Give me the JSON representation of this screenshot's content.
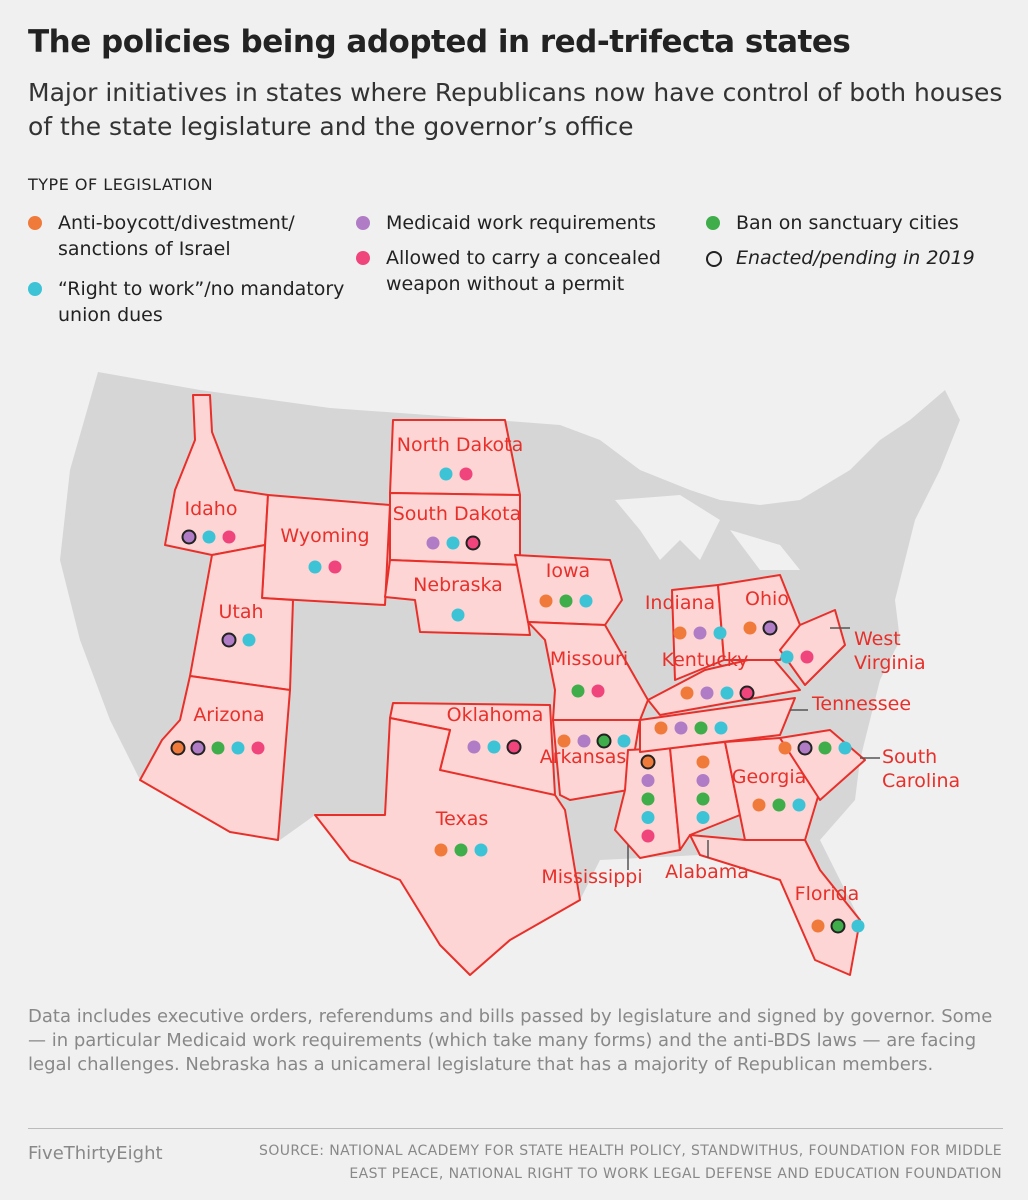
{
  "header": {
    "title": "The policies being adopted in red-trifecta states",
    "subtitle": "Major initiatives in states where Republicans now have control of both houses of the state legislature and the governor’s office"
  },
  "legend": {
    "title": "TYPE OF LEGISLATION",
    "items": [
      {
        "label": "Anti-boycott/divestment/ sanctions of Israel",
        "color": "#f07a3a"
      },
      {
        "label": "“Right to work”/no mandatory union dues",
        "color": "#3cc4d6"
      },
      {
        "label": "Medicaid work requirements",
        "color": "#b07cc6"
      },
      {
        "label": "Allowed to carry a concealed weapon without a permit",
        "color": "#f0447c"
      },
      {
        "label": "Ban on sanctuary cities",
        "color": "#3fad4a"
      }
    ],
    "enacted": "Enacted/pending in 2019"
  },
  "states": [
    {
      "name": "Idaho",
      "policies": [
        {
          "type": 2,
          "enacted": true
        },
        {
          "type": 1,
          "enacted": false
        },
        {
          "type": 3,
          "enacted": false
        }
      ]
    },
    {
      "name": "Wyoming",
      "policies": [
        {
          "type": 1,
          "enacted": false
        },
        {
          "type": 3,
          "enacted": false
        }
      ]
    },
    {
      "name": "Utah",
      "policies": [
        {
          "type": 2,
          "enacted": true
        },
        {
          "type": 1,
          "enacted": false
        }
      ]
    },
    {
      "name": "Arizona",
      "policies": [
        {
          "type": 0,
          "enacted": true
        },
        {
          "type": 2,
          "enacted": true
        },
        {
          "type": 4,
          "enacted": false
        },
        {
          "type": 1,
          "enacted": false
        },
        {
          "type": 3,
          "enacted": false
        }
      ]
    },
    {
      "name": "North Dakota",
      "policies": [
        {
          "type": 1,
          "enacted": false
        },
        {
          "type": 3,
          "enacted": false
        }
      ]
    },
    {
      "name": "South Dakota",
      "policies": [
        {
          "type": 2,
          "enacted": false
        },
        {
          "type": 1,
          "enacted": false
        },
        {
          "type": 3,
          "enacted": true
        }
      ]
    },
    {
      "name": "Nebraska",
      "policies": [
        {
          "type": 1,
          "enacted": false
        }
      ]
    },
    {
      "name": "Iowa",
      "policies": [
        {
          "type": 0,
          "enacted": false
        },
        {
          "type": 4,
          "enacted": false
        },
        {
          "type": 1,
          "enacted": false
        }
      ]
    },
    {
      "name": "Missouri",
      "policies": [
        {
          "type": 4,
          "enacted": false
        },
        {
          "type": 3,
          "enacted": false
        }
      ]
    },
    {
      "name": "Oklahoma",
      "policies": [
        {
          "type": 2,
          "enacted": false
        },
        {
          "type": 1,
          "enacted": false
        },
        {
          "type": 3,
          "enacted": true
        }
      ]
    },
    {
      "name": "Arkansas",
      "policies": [
        {
          "type": 0,
          "enacted": false
        },
        {
          "type": 2,
          "enacted": false
        },
        {
          "type": 4,
          "enacted": true
        },
        {
          "type": 1,
          "enacted": false
        }
      ]
    },
    {
      "name": "Texas",
      "policies": [
        {
          "type": 0,
          "enacted": false
        },
        {
          "type": 4,
          "enacted": false
        },
        {
          "type": 1,
          "enacted": false
        }
      ]
    },
    {
      "name": "Mississippi",
      "policies": [
        {
          "type": 0,
          "enacted": true
        },
        {
          "type": 2,
          "enacted": false
        },
        {
          "type": 4,
          "enacted": false
        },
        {
          "type": 1,
          "enacted": false
        },
        {
          "type": 3,
          "enacted": false
        }
      ]
    },
    {
      "name": "Alabama",
      "policies": [
        {
          "type": 0,
          "enacted": false
        },
        {
          "type": 2,
          "enacted": false
        },
        {
          "type": 4,
          "enacted": false
        },
        {
          "type": 1,
          "enacted": false
        }
      ]
    },
    {
      "name": "Indiana",
      "policies": [
        {
          "type": 0,
          "enacted": false
        },
        {
          "type": 2,
          "enacted": false
        },
        {
          "type": 1,
          "enacted": false
        }
      ]
    },
    {
      "name": "Ohio",
      "policies": [
        {
          "type": 0,
          "enacted": false
        },
        {
          "type": 2,
          "enacted": true
        }
      ]
    },
    {
      "name": "Kentucky",
      "policies": [
        {
          "type": 0,
          "enacted": false
        },
        {
          "type": 2,
          "enacted": false
        },
        {
          "type": 1,
          "enacted": false
        },
        {
          "type": 3,
          "enacted": true
        }
      ]
    },
    {
      "name": "West Virginia",
      "policies": [
        {
          "type": 1,
          "enacted": false
        },
        {
          "type": 3,
          "enacted": false
        }
      ]
    },
    {
      "name": "Tennessee",
      "policies": [
        {
          "type": 0,
          "enacted": false
        },
        {
          "type": 2,
          "enacted": false
        },
        {
          "type": 4,
          "enacted": false
        },
        {
          "type": 1,
          "enacted": false
        }
      ]
    },
    {
      "name": "South Carolina",
      "policies": [
        {
          "type": 0,
          "enacted": false
        },
        {
          "type": 2,
          "enacted": true
        },
        {
          "type": 4,
          "enacted": false
        },
        {
          "type": 1,
          "enacted": false
        }
      ]
    },
    {
      "name": "Georgia",
      "policies": [
        {
          "type": 0,
          "enacted": false
        },
        {
          "type": 4,
          "enacted": false
        },
        {
          "type": 1,
          "enacted": false
        }
      ]
    },
    {
      "name": "Florida",
      "policies": [
        {
          "type": 0,
          "enacted": false
        },
        {
          "type": 4,
          "enacted": true
        },
        {
          "type": 1,
          "enacted": false
        }
      ]
    }
  ],
  "footer": {
    "note": "Data includes executive orders, referendums and bills passed by legislature and signed by governor.  Some — in particular Medicaid work requirements (which take many forms) and the anti-BDS laws — are facing legal challenges. Nebraska has a unicameral legislature that has a majority of Republican members.",
    "brand": "FiveThirtyEight",
    "source": "SOURCE: NATIONAL ACADEMY FOR STATE HEALTH POLICY, STANDWITHUS, FOUNDATION FOR MIDDLE EAST PEACE, NATIONAL RIGHT TO WORK LEGAL DEFENSE AND EDUCATION FOUNDATION"
  }
}
